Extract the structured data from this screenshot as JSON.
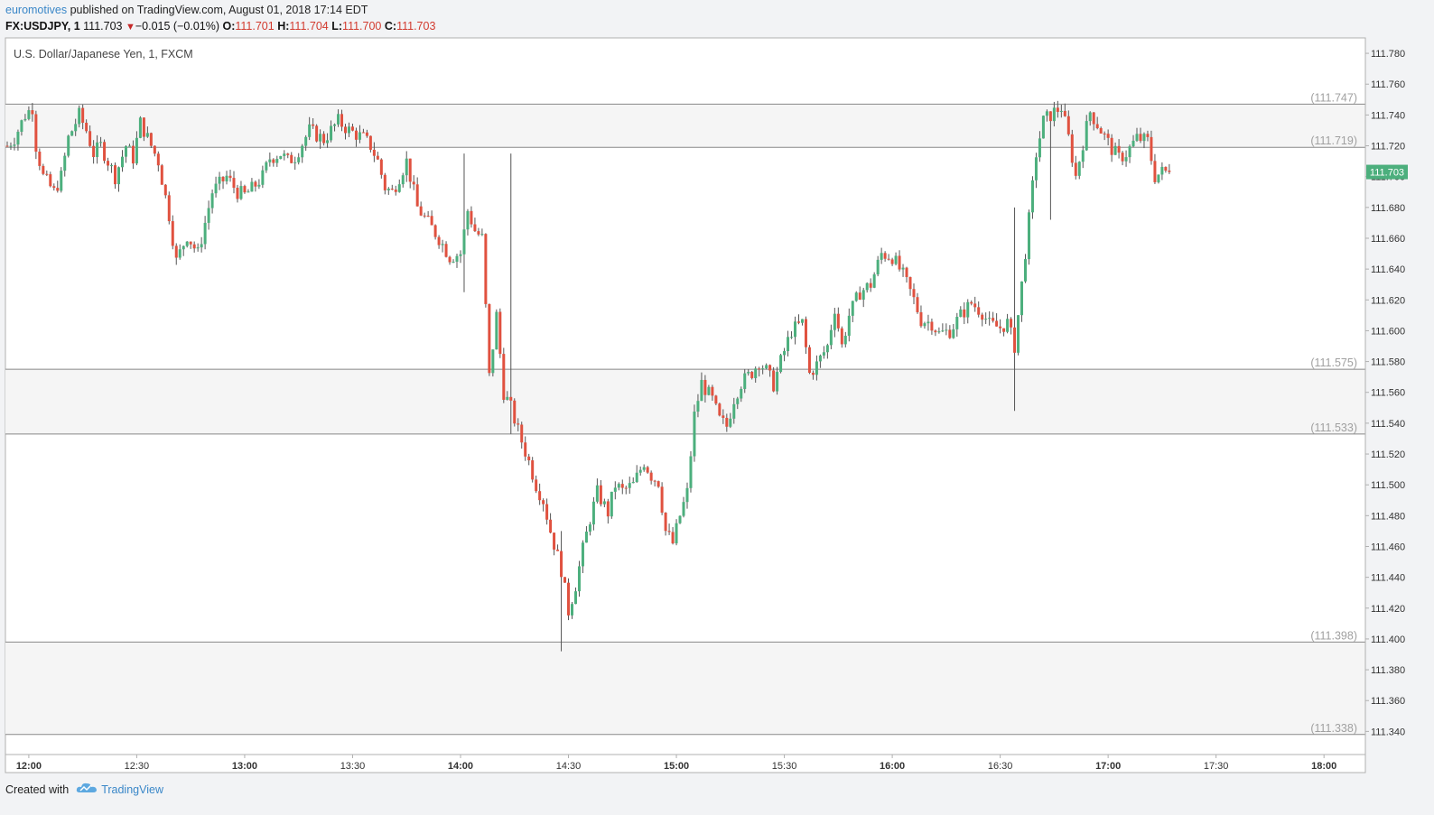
{
  "header": {
    "publisher": "euromotives",
    "published_text": " published on TradingView.com, August 01, 2018 17:14 EDT",
    "symbol": "FX:USDJPY, 1",
    "last": "111.703",
    "change": "−0.015 (−0.01%)",
    "o_label": "O:",
    "o_val": "111.701",
    "h_label": "H:",
    "h_val": "111.704",
    "l_label": "L:",
    "l_val": "111.700",
    "c_label": "C:",
    "c_val": "111.703"
  },
  "chart_title": "U.S. Dollar/Japanese Yen, 1, FXCM",
  "footer": {
    "created": "Created with",
    "brand": "TradingView"
  },
  "colors": {
    "up": "#4caf7d",
    "down": "#e0513f",
    "price_tag": "#4caf7d",
    "zone": "#f5f5f5",
    "line": "#888888"
  },
  "chart_data": {
    "type": "candlestick",
    "title": "U.S. Dollar/Japanese Yen, 1, FXCM",
    "ylim": [
      111.325,
      111.79
    ],
    "y_ticks": [
      "111.780",
      "111.760",
      "111.740",
      "111.720",
      "111.700",
      "111.680",
      "111.660",
      "111.640",
      "111.620",
      "111.600",
      "111.580",
      "111.560",
      "111.540",
      "111.520",
      "111.500",
      "111.480",
      "111.460",
      "111.440",
      "111.420",
      "111.400",
      "111.380",
      "111.360",
      "111.340"
    ],
    "x_ticks": [
      {
        "label": "12:00",
        "bold": true,
        "min": 0
      },
      {
        "label": "12:30",
        "bold": false,
        "min": 30
      },
      {
        "label": "13:00",
        "bold": true,
        "min": 60
      },
      {
        "label": "13:30",
        "bold": false,
        "min": 90
      },
      {
        "label": "14:00",
        "bold": true,
        "min": 120
      },
      {
        "label": "14:30",
        "bold": false,
        "min": 150
      },
      {
        "label": "15:00",
        "bold": true,
        "min": 180
      },
      {
        "label": "15:30",
        "bold": false,
        "min": 210
      },
      {
        "label": "16:00",
        "bold": true,
        "min": 240
      },
      {
        "label": "16:30",
        "bold": false,
        "min": 270
      },
      {
        "label": "17:00",
        "bold": true,
        "min": 300
      },
      {
        "label": "17:30",
        "bold": false,
        "min": 330
      },
      {
        "label": "18:00",
        "bold": true,
        "min": 360
      }
    ],
    "x_start_min": -6.5,
    "x_end_min": 371.5,
    "levels": [
      {
        "label": "(111.747)",
        "value": 111.747
      },
      {
        "label": "(111.719)",
        "value": 111.719
      },
      {
        "label": "(111.575)",
        "value": 111.575
      },
      {
        "label": "(111.533)",
        "value": 111.533
      },
      {
        "label": "(111.398)",
        "value": 111.398
      },
      {
        "label": "(111.338)",
        "value": 111.338
      }
    ],
    "zones": [
      [
        111.719,
        111.747
      ],
      [
        111.533,
        111.575
      ],
      [
        111.338,
        111.398
      ]
    ],
    "last_price": "111.703",
    "last_value": 111.703,
    "anchors": [
      [
        -6,
        111.72
      ],
      [
        -4,
        111.725
      ],
      [
        -1,
        111.74
      ],
      [
        1,
        111.745
      ],
      [
        2,
        111.72
      ],
      [
        4,
        111.7
      ],
      [
        7,
        111.69
      ],
      [
        9,
        111.7
      ],
      [
        11,
        111.725
      ],
      [
        14,
        111.74
      ],
      [
        16,
        111.73
      ],
      [
        18,
        111.715
      ],
      [
        20,
        111.72
      ],
      [
        24,
        111.7
      ],
      [
        27,
        111.72
      ],
      [
        29,
        111.712
      ],
      [
        31,
        111.735
      ],
      [
        36,
        111.71
      ],
      [
        39,
        111.675
      ],
      [
        41,
        111.645
      ],
      [
        44,
        111.662
      ],
      [
        47,
        111.65
      ],
      [
        51,
        111.69
      ],
      [
        55,
        111.7
      ],
      [
        58,
        111.69
      ],
      [
        60,
        111.688
      ],
      [
        62,
        111.692
      ],
      [
        65,
        111.7
      ],
      [
        67,
        111.712
      ],
      [
        70,
        111.715
      ],
      [
        72,
        111.71
      ],
      [
        74,
        111.713
      ],
      [
        78,
        111.73
      ],
      [
        82,
        111.724
      ],
      [
        86,
        111.736
      ],
      [
        89,
        111.73
      ],
      [
        93,
        111.725
      ],
      [
        95,
        111.72
      ],
      [
        97,
        111.71
      ],
      [
        99,
        111.693
      ],
      [
        101,
        111.69
      ],
      [
        103,
        111.7
      ],
      [
        105,
        111.71
      ],
      [
        108,
        111.68
      ],
      [
        111,
        111.67
      ],
      [
        114,
        111.66
      ],
      [
        117,
        111.648
      ],
      [
        120,
        111.65
      ],
      [
        122,
        111.678
      ],
      [
        124,
        111.665
      ],
      [
        126,
        111.66
      ],
      [
        128,
        111.57
      ],
      [
        130,
        111.61
      ],
      [
        132,
        111.56
      ],
      [
        134,
        111.55
      ],
      [
        136,
        111.535
      ],
      [
        139,
        111.515
      ],
      [
        141,
        111.5
      ],
      [
        143,
        111.49
      ],
      [
        145,
        111.47
      ],
      [
        148,
        111.445
      ],
      [
        150,
        111.418
      ],
      [
        152,
        111.435
      ],
      [
        154,
        111.458
      ],
      [
        156,
        111.478
      ],
      [
        158,
        111.495
      ],
      [
        161,
        111.482
      ],
      [
        163,
        111.5
      ],
      [
        165,
        111.496
      ],
      [
        168,
        111.5
      ],
      [
        171,
        111.515
      ],
      [
        173,
        111.506
      ],
      [
        175,
        111.502
      ],
      [
        177,
        111.47
      ],
      [
        179,
        111.462
      ],
      [
        181,
        111.48
      ],
      [
        183,
        111.495
      ],
      [
        185,
        111.545
      ],
      [
        187,
        111.566
      ],
      [
        190,
        111.555
      ],
      [
        192,
        111.542
      ],
      [
        194,
        111.538
      ],
      [
        196,
        111.556
      ],
      [
        198,
        111.566
      ],
      [
        201,
        111.573
      ],
      [
        203,
        111.58
      ],
      [
        205,
        111.574
      ],
      [
        207,
        111.565
      ],
      [
        209,
        111.58
      ],
      [
        212,
        111.6
      ],
      [
        215,
        111.605
      ],
      [
        217,
        111.572
      ],
      [
        219,
        111.578
      ],
      [
        222,
        111.59
      ],
      [
        224,
        111.615
      ],
      [
        226,
        111.59
      ],
      [
        228,
        111.61
      ],
      [
        231,
        111.625
      ],
      [
        234,
        111.63
      ],
      [
        237,
        111.65
      ],
      [
        240,
        111.648
      ],
      [
        243,
        111.636
      ],
      [
        246,
        111.62
      ],
      [
        248,
        111.607
      ],
      [
        251,
        111.605
      ],
      [
        253,
        111.598
      ],
      [
        256,
        111.6
      ],
      [
        259,
        111.61
      ],
      [
        262,
        111.618
      ],
      [
        265,
        111.612
      ],
      [
        267,
        111.604
      ],
      [
        270,
        111.602
      ],
      [
        272,
        111.605
      ],
      [
        274,
        111.59
      ],
      [
        276,
        111.63
      ],
      [
        278,
        111.672
      ],
      [
        280,
        111.715
      ],
      [
        282,
        111.736
      ],
      [
        285,
        111.742
      ],
      [
        287,
        111.745
      ],
      [
        289,
        111.725
      ],
      [
        291,
        111.7
      ],
      [
        293,
        111.722
      ],
      [
        295,
        111.742
      ],
      [
        298,
        111.73
      ],
      [
        301,
        111.718
      ],
      [
        303,
        111.712
      ],
      [
        305,
        111.715
      ],
      [
        308,
        111.725
      ],
      [
        311,
        111.723
      ],
      [
        313,
        111.7
      ],
      [
        315,
        111.703
      ],
      [
        317,
        111.703
      ]
    ]
  }
}
